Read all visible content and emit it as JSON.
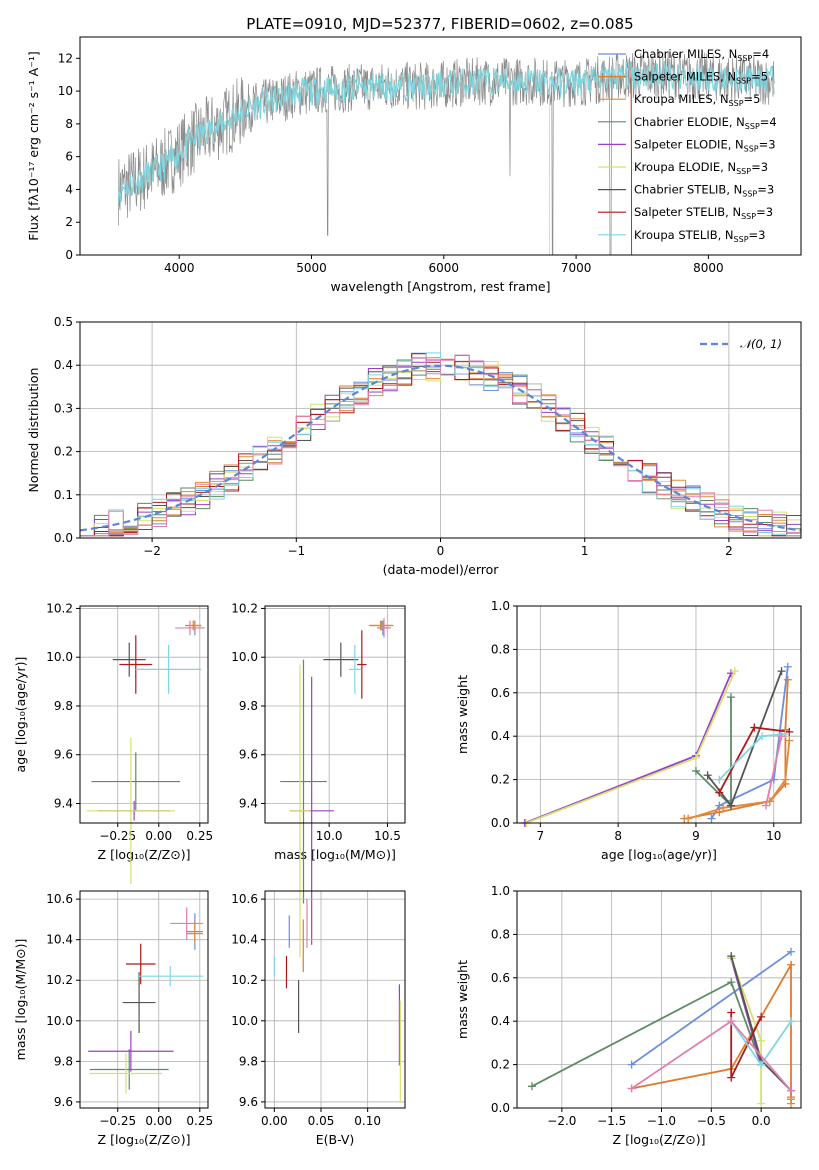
{
  "colors": {
    "Chabrier MILES": "#6a8ee0",
    "Salpeter MILES": "#e07b2e",
    "Kroupa MILES": "#e08a3c",
    "Chabrier ELODIE": "#5e8a66",
    "Salpeter ELODIE": "#9a40c8",
    "Kroupa ELODIE": "#d8e070",
    "Chabrier STELIB": "#555555",
    "Salpeter STELIB": "#b01818",
    "Kroupa STELIB": "#7fd6e0"
  },
  "chart_data": [
    {
      "type": "line",
      "title": "PLATE=0910, MJD=52377, FIBERID=0602, z=0.085",
      "xlabel": "wavelength [Angstrom, rest frame]",
      "ylabel": "Flux [fλ10⁻¹⁷ erg cm⁻² s⁻¹ A⁻¹]",
      "xlim": [
        3250,
        8700
      ],
      "ylim": [
        0,
        13.3
      ],
      "xticks": [
        4000,
        5000,
        6000,
        7000,
        8000
      ],
      "yticks": [
        0,
        2,
        4,
        6,
        8,
        10,
        12
      ],
      "legend_position": "right",
      "legend": [
        {
          "name": "Chabrier MILES, N",
          "sub": "SSP",
          "tail": "=4"
        },
        {
          "name": "Salpeter MILES, N",
          "sub": "SSP",
          "tail": "=5"
        },
        {
          "name": "Kroupa MILES, N",
          "sub": "SSP",
          "tail": "=5"
        },
        {
          "name": "Chabrier ELODIE, N",
          "sub": "SSP",
          "tail": "=4"
        },
        {
          "name": "Salpeter ELODIE, N",
          "sub": "SSP",
          "tail": "=3"
        },
        {
          "name": "Kroupa ELODIE, N",
          "sub": "SSP",
          "tail": "=3"
        },
        {
          "name": "Chabrier STELIB, N",
          "sub": "SSP",
          "tail": "=3"
        },
        {
          "name": "Salpeter STELIB, N",
          "sub": "SSP",
          "tail": "=3"
        },
        {
          "name": "Kroupa STELIB, N",
          "sub": "SSP",
          "tail": "=3"
        }
      ],
      "continuum_wavelength": [
        3550,
        3700,
        3850,
        3950,
        4100,
        4300,
        4500,
        4700,
        4900,
        5100,
        5300,
        5500,
        5700,
        5900,
        6100,
        6300,
        6500,
        6700,
        6900,
        7100,
        7300,
        7500,
        7700,
        7900,
        8100,
        8300,
        8500
      ],
      "continuum_flux": [
        4.0,
        4.6,
        5.3,
        5.9,
        7.0,
        7.9,
        8.9,
        9.4,
        9.9,
        10.1,
        10.2,
        10.3,
        10.3,
        10.3,
        10.5,
        10.6,
        10.6,
        10.6,
        10.5,
        10.6,
        10.9,
        11.0,
        11.0,
        10.9,
        10.8,
        10.7,
        10.6
      ]
    },
    {
      "type": "bar",
      "xlabel": "(data-model)/error",
      "ylabel": "Normed distribution",
      "xlim": [
        -2.5,
        2.5
      ],
      "ylim": [
        0,
        0.5
      ],
      "xticks": [
        -2,
        -1,
        0,
        1,
        2
      ],
      "yticks": [
        0.0,
        0.1,
        0.2,
        0.3,
        0.4,
        0.5
      ],
      "bin_width": 0.1,
      "reference_curve": {
        "name": "𝒩(0, 1)",
        "mean": 0,
        "sigma": 1,
        "color": "#5a86d8"
      },
      "legend_position": "top-right"
    },
    {
      "type": "scatter",
      "name": "age vs Z",
      "xlabel": "Z [log₁₀(Z/Z⊙)]",
      "ylabel": "age  [log₁₀(age/yr)]",
      "xlim": [
        -0.48,
        0.3
      ],
      "ylim": [
        9.32,
        10.21
      ],
      "xticks": [
        -0.25,
        0.0,
        0.25
      ],
      "yticks": [
        9.4,
        9.6,
        9.8,
        10.0,
        10.2
      ],
      "points": [
        {
          "model": "Chabrier MILES",
          "x": 0.22,
          "y": 10.12,
          "xerr": 0.05,
          "yerr": 0.03
        },
        {
          "model": "Salpeter MILES",
          "x": 0.21,
          "y": 10.13,
          "xerr": 0.05,
          "yerr": 0.02
        },
        {
          "model": "Kroupa MILES",
          "x": 0.22,
          "y": 10.13,
          "xerr": 0.04,
          "yerr": 0.02
        },
        {
          "model": "Chabrier ELODIE",
          "x": -0.14,
          "y": 9.49,
          "xerr": 0.27,
          "yerr": 0.12
        },
        {
          "model": "Salpeter ELODIE",
          "x": -0.15,
          "y": 9.37,
          "xerr": 0.22,
          "yerr": 0.04
        },
        {
          "model": "Kroupa ELODIE",
          "x": -0.17,
          "y": 9.37,
          "xerr": 0.27,
          "yerr": 0.3
        },
        {
          "model": "Chabrier STELIB",
          "x": -0.18,
          "y": 9.99,
          "xerr": 0.1,
          "yerr": 0.07
        },
        {
          "model": "Salpeter STELIB",
          "x": -0.14,
          "y": 9.97,
          "xerr": 0.1,
          "yerr": 0.12
        },
        {
          "model": "Kroupa STELIB",
          "x": 0.06,
          "y": 9.95,
          "xerr": 0.2,
          "yerr": 0.1
        },
        {
          "model": "Pink",
          "x": 0.19,
          "y": 10.12,
          "xerr": 0.09,
          "yerr": 0.03
        }
      ]
    },
    {
      "type": "scatter",
      "name": "age vs mass",
      "xlabel": "mass [log₁₀(M/M⊙)]",
      "ylabel": "",
      "xlim": [
        9.45,
        10.65
      ],
      "ylim": [
        9.32,
        10.21
      ],
      "xticks": [
        10.0,
        10.5
      ],
      "yticks": [
        9.4,
        9.6,
        9.8,
        10.0,
        10.2
      ],
      "extra_xtick_label": "9.5",
      "points": [
        {
          "model": "Chabrier MILES",
          "x": 10.46,
          "y": 10.12,
          "xerr": 0.05,
          "yerr": 0.03
        },
        {
          "model": "Salpeter MILES",
          "x": 10.45,
          "y": 10.13,
          "xerr": 0.1,
          "yerr": 0.02
        },
        {
          "model": "Kroupa MILES",
          "x": 10.44,
          "y": 10.13,
          "xerr": 0.1,
          "yerr": 0.02
        },
        {
          "model": "Chabrier ELODIE",
          "x": 9.78,
          "y": 9.49,
          "xerr": 0.2,
          "yerr": 0.5
        },
        {
          "model": "Salpeter ELODIE",
          "x": 9.85,
          "y": 9.37,
          "xerr": 0.19,
          "yerr": 0.55
        },
        {
          "model": "Kroupa ELODIE",
          "x": 9.75,
          "y": 9.37,
          "xerr": 0.09,
          "yerr": 0.6
        },
        {
          "model": "Chabrier STELIB",
          "x": 10.1,
          "y": 9.99,
          "xerr": 0.15,
          "yerr": 0.07
        },
        {
          "model": "Salpeter STELIB",
          "x": 10.28,
          "y": 9.97,
          "xerr": 0.04,
          "yerr": 0.14
        },
        {
          "model": "Kroupa STELIB",
          "x": 10.22,
          "y": 9.95,
          "xerr": 0.05,
          "yerr": 0.1
        },
        {
          "model": "Pink",
          "x": 10.47,
          "y": 10.12,
          "xerr": 0.06,
          "yerr": 0.04
        }
      ]
    },
    {
      "type": "line",
      "name": "mass weight vs age",
      "xlabel": "age  [log₁₀(age/yr)]",
      "ylabel": "mass weight",
      "xlim": [
        6.7,
        10.35
      ],
      "ylim": [
        0,
        1.0
      ],
      "xticks": [
        7,
        8,
        9,
        10
      ],
      "yticks": [
        0.0,
        0.2,
        0.4,
        0.6,
        0.8,
        1.0
      ],
      "series": [
        {
          "model": "Chabrier MILES",
          "points": [
            [
              9.2,
              0.02
            ],
            [
              9.3,
              0.08
            ],
            [
              10.0,
              0.2
            ],
            [
              10.18,
              0.72
            ]
          ]
        },
        {
          "model": "Salpeter MILES",
          "points": [
            [
              8.85,
              0.02
            ],
            [
              9.3,
              0.05
            ],
            [
              9.95,
              0.1
            ],
            [
              10.15,
              0.18
            ],
            [
              10.15,
              0.43
            ],
            [
              10.18,
              0.66
            ]
          ]
        },
        {
          "model": "Kroupa MILES",
          "points": [
            [
              8.9,
              0.02
            ],
            [
              9.35,
              0.07
            ],
            [
              9.95,
              0.1
            ],
            [
              10.15,
              0.2
            ],
            [
              10.2,
              0.38
            ]
          ]
        },
        {
          "model": "Chabrier ELODIE",
          "points": [
            [
              9.0,
              0.24
            ],
            [
              9.45,
              0.08
            ],
            [
              9.45,
              0.58
            ]
          ]
        },
        {
          "model": "Salpeter ELODIE",
          "points": [
            [
              6.8,
              0.0
            ],
            [
              9.0,
              0.31
            ],
            [
              9.45,
              0.69
            ]
          ]
        },
        {
          "model": "Kroupa ELODIE",
          "points": [
            [
              6.82,
              0.0
            ],
            [
              9.0,
              0.3
            ],
            [
              9.5,
              0.7
            ]
          ]
        },
        {
          "model": "Chabrier STELIB",
          "points": [
            [
              9.15,
              0.22
            ],
            [
              9.45,
              0.08
            ],
            [
              10.1,
              0.7
            ]
          ]
        },
        {
          "model": "Salpeter STELIB",
          "points": [
            [
              9.3,
              0.14
            ],
            [
              9.75,
              0.44
            ],
            [
              10.2,
              0.42
            ]
          ]
        },
        {
          "model": "Kroupa STELIB",
          "points": [
            [
              9.3,
              0.2
            ],
            [
              9.85,
              0.4
            ],
            [
              10.15,
              0.41
            ]
          ]
        },
        {
          "model": "Pink",
          "points": [
            [
              9.9,
              0.08
            ],
            [
              10.1,
              0.4
            ]
          ]
        }
      ]
    },
    {
      "type": "scatter",
      "name": "mass vs Z",
      "xlabel": "Z [log₁₀(Z/Z⊙)]",
      "ylabel": "mass [log₁₀(M/M⊙)]",
      "xlim": [
        -0.48,
        0.3
      ],
      "ylim": [
        9.57,
        10.64
      ],
      "xticks": [
        -0.25,
        0.0,
        0.25
      ],
      "yticks": [
        9.6,
        9.8,
        10.0,
        10.2,
        10.4,
        10.6
      ],
      "points": [
        {
          "model": "Chabrier MILES",
          "x": 0.22,
          "y": 10.44,
          "xerr": 0.04,
          "yerr": 0.09
        },
        {
          "model": "Salpeter MILES",
          "x": 0.22,
          "y": 10.44,
          "xerr": 0.05,
          "yerr": 0.05
        },
        {
          "model": "Kroupa MILES",
          "x": 0.22,
          "y": 10.43,
          "xerr": 0.05,
          "yerr": 0.04
        },
        {
          "model": "Chabrier ELODIE",
          "x": -0.18,
          "y": 9.76,
          "xerr": 0.24,
          "yerr": 0.1
        },
        {
          "model": "Salpeter ELODIE",
          "x": -0.17,
          "y": 9.85,
          "xerr": 0.26,
          "yerr": 0.1
        },
        {
          "model": "Kroupa ELODIE",
          "x": -0.2,
          "y": 9.74,
          "xerr": 0.22,
          "yerr": 0.1
        },
        {
          "model": "Chabrier STELIB",
          "x": -0.12,
          "y": 10.09,
          "xerr": 0.1,
          "yerr": 0.15
        },
        {
          "model": "Salpeter STELIB",
          "x": -0.11,
          "y": 10.28,
          "xerr": 0.09,
          "yerr": 0.1
        },
        {
          "model": "Kroupa STELIB",
          "x": 0.07,
          "y": 10.22,
          "xerr": 0.2,
          "yerr": 0.05
        },
        {
          "model": "Pink",
          "x": 0.17,
          "y": 10.48,
          "xerr": 0.1,
          "yerr": 0.08
        }
      ]
    },
    {
      "type": "scatter",
      "name": "mass vs E(B-V)",
      "xlabel": "E(B-V)",
      "ylabel": "",
      "xlim": [
        -0.01,
        0.14
      ],
      "ylim": [
        9.57,
        10.64
      ],
      "xticks": [
        0.0,
        0.05,
        0.1
      ],
      "yticks": [
        9.6,
        9.8,
        10.0,
        10.2,
        10.4,
        10.6
      ],
      "points": [
        {
          "model": "Chabrier MILES",
          "x": 0.016,
          "y": 10.44,
          "yerr": 0.08
        },
        {
          "model": "Salpeter MILES",
          "x": 0.031,
          "y": 10.37,
          "yerr": 0.13
        },
        {
          "model": "Kroupa STELIB",
          "x": 0.0,
          "y": 10.27,
          "yerr": 0.05
        },
        {
          "model": "Salpeter STELIB",
          "x": 0.013,
          "y": 10.24,
          "yerr": 0.08
        },
        {
          "model": "Chabrier STELIB",
          "x": 0.026,
          "y": 10.07,
          "yerr": 0.13
        },
        {
          "model": "Salpeter ELODIE",
          "x": 0.134,
          "y": 9.98,
          "yerr": 0.2
        },
        {
          "model": "Kroupa ELODIE",
          "x": 0.135,
          "y": 9.85,
          "yerr": 0.25
        },
        {
          "model": "Pink",
          "x": 0.035,
          "y": 10.48,
          "yerr": 0.12
        }
      ]
    },
    {
      "type": "line",
      "name": "mass weight vs Z",
      "xlabel": "Z [log₁₀(Z/Z⊙)]",
      "ylabel": "mass weight",
      "xlim": [
        -2.45,
        0.4
      ],
      "ylim": [
        0,
        1.0
      ],
      "xticks": [
        -2.0,
        -1.5,
        -1.0,
        -0.5,
        0.0
      ],
      "yticks": [
        0.0,
        0.2,
        0.4,
        0.6,
        0.8,
        1.0
      ],
      "series": [
        {
          "model": "Chabrier MILES",
          "points": [
            [
              -1.3,
              0.2
            ],
            [
              0.3,
              0.72
            ]
          ]
        },
        {
          "model": "Salpeter MILES",
          "points": [
            [
              -1.3,
              0.09
            ],
            [
              -0.3,
              0.18
            ],
            [
              0.3,
              0.66
            ],
            [
              0.3,
              0.05
            ]
          ]
        },
        {
          "model": "Kroupa MILES",
          "points": [
            [
              0.3,
              0.02
            ],
            [
              0.3,
              0.04
            ]
          ]
        },
        {
          "model": "Chabrier ELODIE",
          "points": [
            [
              -2.3,
              0.1
            ],
            [
              -0.3,
              0.58
            ],
            [
              0.0,
              0.2
            ]
          ]
        },
        {
          "model": "Salpeter ELODIE",
          "points": [
            [
              -0.3,
              0.69
            ],
            [
              0.0,
              0.2
            ]
          ]
        },
        {
          "model": "Kroupa ELODIE",
          "points": [
            [
              -0.3,
              0.69
            ],
            [
              0.0,
              0.31
            ],
            [
              0.0,
              0.02
            ]
          ]
        },
        {
          "model": "Chabrier STELIB",
          "points": [
            [
              -0.3,
              0.7
            ],
            [
              0.0,
              0.22
            ],
            [
              0.3,
              0.08
            ]
          ]
        },
        {
          "model": "Salpeter STELIB",
          "points": [
            [
              -0.3,
              0.44
            ],
            [
              -0.3,
              0.14
            ],
            [
              0.0,
              0.42
            ]
          ]
        },
        {
          "model": "Kroupa STELIB",
          "points": [
            [
              -0.3,
              0.4
            ],
            [
              0.0,
              0.2
            ],
            [
              0.3,
              0.4
            ]
          ]
        },
        {
          "model": "Pink",
          "points": [
            [
              -1.3,
              0.09
            ],
            [
              -0.3,
              0.4
            ],
            [
              0.3,
              0.08
            ]
          ]
        }
      ]
    }
  ]
}
